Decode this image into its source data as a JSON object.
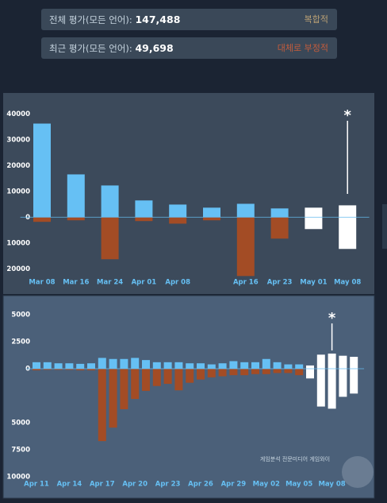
{
  "summary": [
    {
      "label": "전체 평가(모든 언어):",
      "value": "147,488",
      "rating": "복합적",
      "rating_color": "#b9a074"
    },
    {
      "label": "최근 평가(모든 언어):",
      "value": "49,698",
      "rating": "대체로 부정적",
      "rating_color": "#c35c3c"
    }
  ],
  "chart_data": [
    {
      "type": "bar",
      "categories": [
        "Mar 08",
        "Mar 16",
        "Mar 24",
        "Apr 01",
        "Apr 08",
        null,
        "Apr 16",
        "Apr 23",
        "May 01",
        "May 08"
      ],
      "series": [
        {
          "color": "#66c0f4",
          "values": [
            36300,
            16600,
            12300,
            6500,
            4900,
            3700,
            5200,
            3400,
            null,
            null
          ]
        },
        {
          "color": "#a34c25",
          "values": [
            -1800,
            -1200,
            -16300,
            -1500,
            -2500,
            -1200,
            -22800,
            -8300,
            null,
            null
          ]
        },
        {
          "color": "#ffffff",
          "values": [
            null,
            null,
            null,
            null,
            null,
            null,
            null,
            null,
            3700,
            4600
          ]
        },
        {
          "color": "#ffffff",
          "values": [
            null,
            null,
            null,
            null,
            null,
            null,
            null,
            null,
            -4600,
            -12300
          ]
        }
      ],
      "ylim": [
        -23000,
        42000
      ],
      "yticks": [
        40000,
        30000,
        20000,
        10000,
        0,
        {
          "value": -10000,
          "label": "10000"
        },
        {
          "value": -20000,
          "label": "20000"
        }
      ],
      "annotation": "*"
    },
    {
      "type": "bar",
      "categories": [
        "Apr 11",
        null,
        null,
        "Apr 14",
        null,
        null,
        "Apr 17",
        null,
        null,
        "Apr 20",
        null,
        null,
        "Apr 23",
        null,
        null,
        "Apr 26",
        null,
        null,
        "Apr 29",
        null,
        null,
        "May 02",
        null,
        null,
        "May 05",
        null,
        null,
        "May 08",
        null,
        null
      ],
      "series": [
        {
          "color": "#66c0f4",
          "values": [
            600,
            600,
            500,
            500,
            450,
            500,
            1000,
            900,
            900,
            1000,
            800,
            600,
            600,
            600,
            500,
            500,
            400,
            500,
            700,
            600,
            600,
            900,
            600,
            400,
            400,
            null,
            null,
            null,
            null,
            null
          ]
        },
        {
          "color": "#a34c25",
          "values": [
            -150,
            -100,
            -100,
            -100,
            -150,
            -150,
            -6700,
            -5450,
            -3750,
            -2800,
            -2050,
            -1600,
            -1400,
            -2000,
            -1300,
            -1000,
            -800,
            -700,
            -600,
            -600,
            -500,
            -500,
            -400,
            -400,
            -600,
            null,
            null,
            null,
            null,
            null
          ]
        },
        {
          "color": "#ffffff",
          "values": [
            null,
            null,
            null,
            null,
            null,
            null,
            null,
            null,
            null,
            null,
            null,
            null,
            null,
            null,
            null,
            null,
            null,
            null,
            null,
            null,
            null,
            null,
            null,
            null,
            null,
            300,
            1300,
            1400,
            1200,
            1100
          ]
        },
        {
          "color": "#ffffff",
          "values": [
            null,
            null,
            null,
            null,
            null,
            null,
            null,
            null,
            null,
            null,
            null,
            null,
            null,
            null,
            null,
            null,
            null,
            null,
            null,
            null,
            null,
            null,
            null,
            null,
            null,
            -900,
            -3500,
            -3700,
            -2600,
            -2300
          ]
        }
      ],
      "ylim": [
        -10000,
        5500
      ],
      "yticks": [
        5000,
        2500,
        0,
        {
          "value": -5000,
          "label": "5000"
        },
        {
          "value": -7500,
          "label": "7500"
        },
        {
          "value": -10000,
          "label": "10000"
        }
      ],
      "annotation": "*"
    }
  ],
  "watermark": "게임분석 전문미디어 게임와이"
}
